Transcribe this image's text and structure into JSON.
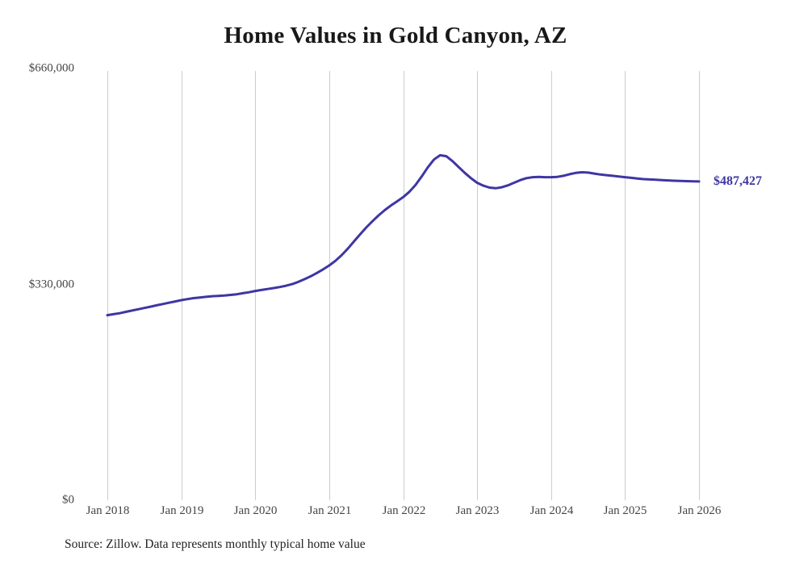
{
  "chart_data": {
    "type": "line",
    "title": "Home Values in Gold Canyon, AZ",
    "source_note": "Source: Zillow. Data represents monthly typical home value",
    "end_label": "$487,427",
    "latest_value": 487427,
    "line_color": "#3e36a3",
    "grid_color": "#cccccc",
    "axis_label_color": "#454545",
    "grid": "vertical-only",
    "legend_position": "none",
    "ylim": [
      0,
      660000
    ],
    "y_ticks": [
      {
        "value": 0,
        "label": "$0"
      },
      {
        "value": 330000,
        "label": "$330,000"
      },
      {
        "value": 660000,
        "label": "$660,000"
      }
    ],
    "x_tick_labels": [
      "Jan 2018",
      "Jan 2019",
      "Jan 2020",
      "Jan 2021",
      "Jan 2022",
      "Jan 2023",
      "Jan 2024",
      "Jan 2025",
      "Jan 2026"
    ],
    "x_start": "Jan 2018",
    "x_end": "Jan 2026",
    "x_interval": "monthly",
    "series": [
      {
        "name": "Typical home value",
        "values": [
          283000,
          284500,
          286000,
          288000,
          290000,
          292000,
          294000,
          296000,
          298000,
          300000,
          302000,
          304000,
          306000,
          307500,
          309000,
          310000,
          311000,
          312000,
          312500,
          313000,
          314000,
          315000,
          316500,
          318000,
          320000,
          321500,
          323000,
          324500,
          326000,
          328000,
          330500,
          334000,
          338000,
          342500,
          347500,
          353000,
          359000,
          366000,
          374500,
          384500,
          395500,
          406500,
          417000,
          426500,
          435500,
          443500,
          450500,
          457000,
          463500,
          471500,
          482000,
          495000,
          509000,
          521000,
          527500,
          526000,
          518500,
          509500,
          500500,
          492500,
          485500,
          481000,
          478000,
          477000,
          478500,
          481500,
          485500,
          489500,
          492500,
          494000,
          494500,
          494000,
          494000,
          494500,
          496000,
          498500,
          500500,
          501500,
          501000,
          499500,
          498000,
          497000,
          496000,
          495000,
          494000,
          493000,
          492000,
          491000,
          490500,
          490000,
          489500,
          489000,
          488500,
          488200,
          487900,
          487600,
          487427
        ]
      }
    ]
  }
}
